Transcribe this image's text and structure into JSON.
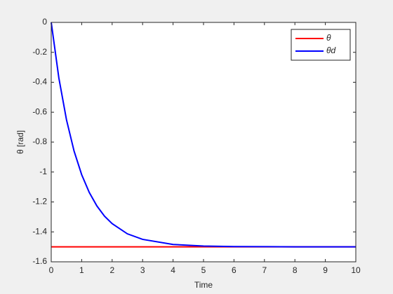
{
  "chart_data": {
    "type": "line",
    "xlabel": "Time",
    "ylabel": "θ [rad]",
    "x": [
      0,
      0.25,
      0.5,
      0.75,
      1,
      1.25,
      1.5,
      1.75,
      2,
      2.5,
      3,
      4,
      5,
      6,
      7,
      8,
      9,
      10
    ],
    "series": [
      {
        "name": "θ",
        "color": "#ff0000",
        "values": [
          -1.5,
          -1.5,
          -1.5,
          -1.5,
          -1.5,
          -1.5,
          -1.5,
          -1.5,
          -1.5,
          -1.5,
          -1.5,
          -1.5,
          -1.5,
          -1.5,
          -1.5,
          -1.5,
          -1.5,
          -1.5
        ]
      },
      {
        "name": "θd",
        "color": "#0000ff",
        "values": [
          0,
          -0.371,
          -0.65,
          -0.86,
          -1.018,
          -1.137,
          -1.227,
          -1.295,
          -1.345,
          -1.413,
          -1.45,
          -1.484,
          -1.495,
          -1.498,
          -1.499,
          -1.5,
          -1.5,
          -1.5
        ]
      }
    ],
    "xlim": [
      0,
      10
    ],
    "xticks": [
      0,
      1,
      2,
      3,
      4,
      5,
      6,
      7,
      8,
      9,
      10
    ],
    "ylim": [
      -1.6,
      0
    ],
    "yticks": [
      -1.6,
      -1.4,
      -1.2,
      -1,
      -0.8,
      -0.6,
      -0.4,
      -0.2,
      0
    ],
    "grid": false,
    "legend": "upper-right"
  }
}
